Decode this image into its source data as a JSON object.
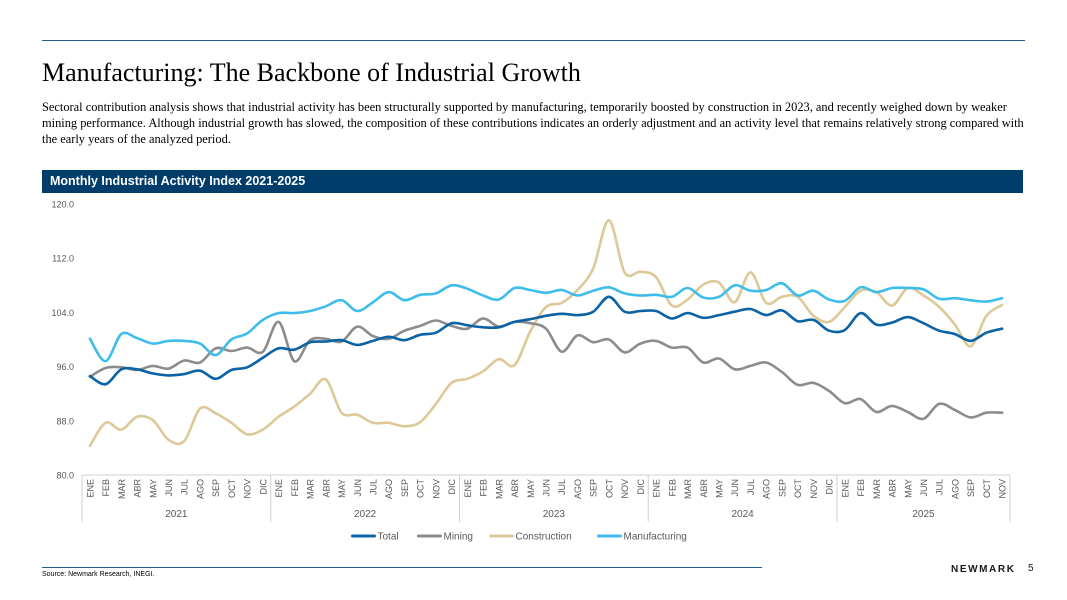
{
  "title": "Manufacturing: The Backbone of Industrial Growth",
  "description": "Sectoral contribution analysis shows that industrial activity has been structurally supported by manufacturing, temporarily boosted by construction in 2023, and recently weighed down by weaker mining performance. Although industrial growth has slowed, the composition of these contributions indicates an orderly adjustment and an activity level that remains relatively strong compared with the early years of the analyzed period.",
  "source": "Source: Newmark Research, INEGI.",
  "brand": "NEWMARK",
  "page_number": "5",
  "chart_data": {
    "type": "line",
    "title": "Monthly Industrial Activity Index 2021-2025",
    "ylim": [
      80,
      120
    ],
    "yticks": [
      "80.0",
      "88.0",
      "96.0",
      "104.0",
      "112.0",
      "120.0"
    ],
    "ytick_values": [
      80,
      88,
      96,
      104,
      112,
      120
    ],
    "years": [
      "2021",
      "2022",
      "2023",
      "2024",
      "2025"
    ],
    "month_labels": [
      "ENE",
      "FEB",
      "MAR",
      "ABR",
      "MAY",
      "JUN",
      "JUL",
      "AGO",
      "SEP",
      "OCT",
      "NOV",
      "DIC"
    ],
    "categories_count": 59,
    "legend_position": "bottom",
    "series": [
      {
        "name": "Total",
        "color": "#0b62a4",
        "values": [
          94.6,
          93.4,
          95.6,
          95.6,
          95.0,
          94.7,
          94.9,
          95.4,
          94.2,
          95.5,
          95.9,
          97.3,
          98.7,
          98.5,
          99.6,
          99.7,
          99.9,
          99.2,
          99.8,
          100.4,
          99.9,
          100.7,
          101.0,
          102.4,
          102.1,
          101.8,
          101.8,
          102.6,
          103.0,
          103.5,
          103.8,
          103.6,
          104.1,
          106.3,
          104.1,
          104.2,
          104.2,
          103.1,
          103.9,
          103.2,
          103.6,
          104.1,
          104.5,
          103.6,
          104.3,
          102.7,
          102.9,
          101.3,
          101.4,
          103.9,
          102.2,
          102.5,
          103.3,
          102.4,
          101.3,
          100.8,
          99.8,
          101.0,
          101.6
        ]
      },
      {
        "name": "Mining",
        "color": "#8c8c8c",
        "values": [
          94.5,
          95.8,
          95.9,
          95.5,
          96.1,
          95.7,
          96.9,
          96.6,
          98.7,
          98.3,
          98.8,
          98.2,
          102.6,
          96.8,
          99.9,
          100.1,
          99.7,
          101.9,
          100.5,
          100.1,
          101.3,
          102.0,
          102.8,
          102.0,
          101.6,
          103.1,
          101.9,
          102.6,
          102.4,
          101.6,
          98.2,
          100.6,
          99.6,
          100.0,
          98.1,
          99.4,
          99.8,
          98.8,
          98.8,
          96.6,
          97.2,
          95.6,
          96.1,
          96.6,
          95.2,
          93.3,
          93.6,
          92.4,
          90.6,
          91.2,
          89.3,
          90.2,
          89.3,
          88.3,
          90.5,
          89.6,
          88.5,
          89.2,
          89.2
        ]
      },
      {
        "name": "Construction",
        "color": "#ddc898",
        "values": [
          84.3,
          87.7,
          86.7,
          88.6,
          88.1,
          85.2,
          85.0,
          89.8,
          89.1,
          87.7,
          86.0,
          86.7,
          88.6,
          90.1,
          92.0,
          94.1,
          89.2,
          88.9,
          87.7,
          87.7,
          87.2,
          87.8,
          90.5,
          93.6,
          94.2,
          95.3,
          97.1,
          96.2,
          101.2,
          104.8,
          105.4,
          107.3,
          110.5,
          117.6,
          109.9,
          110.0,
          109.2,
          105.0,
          105.9,
          108.1,
          108.4,
          105.5,
          109.9,
          105.4,
          106.3,
          106.3,
          103.5,
          102.6,
          104.8,
          107.2,
          107.0,
          105.0,
          107.6,
          106.5,
          104.8,
          102.2,
          99.0,
          103.5,
          105.1
        ]
      },
      {
        "name": "Manufacturing",
        "color": "#3fbdea",
        "values": [
          100.1,
          96.8,
          100.8,
          100.2,
          99.4,
          99.8,
          99.8,
          99.4,
          97.7,
          100.0,
          100.9,
          102.9,
          103.9,
          103.9,
          104.2,
          104.9,
          105.8,
          104.2,
          105.5,
          107.0,
          105.8,
          106.6,
          106.8,
          108.0,
          107.5,
          106.5,
          105.9,
          107.6,
          107.3,
          106.9,
          107.3,
          106.5,
          107.2,
          107.7,
          106.8,
          106.5,
          106.6,
          106.3,
          107.6,
          106.2,
          106.3,
          108.0,
          107.2,
          107.3,
          108.3,
          106.5,
          107.2,
          105.9,
          105.7,
          107.7,
          107.0,
          107.6,
          107.6,
          107.4,
          106.0,
          106.1,
          105.8,
          105.6,
          106.1
        ]
      }
    ]
  }
}
